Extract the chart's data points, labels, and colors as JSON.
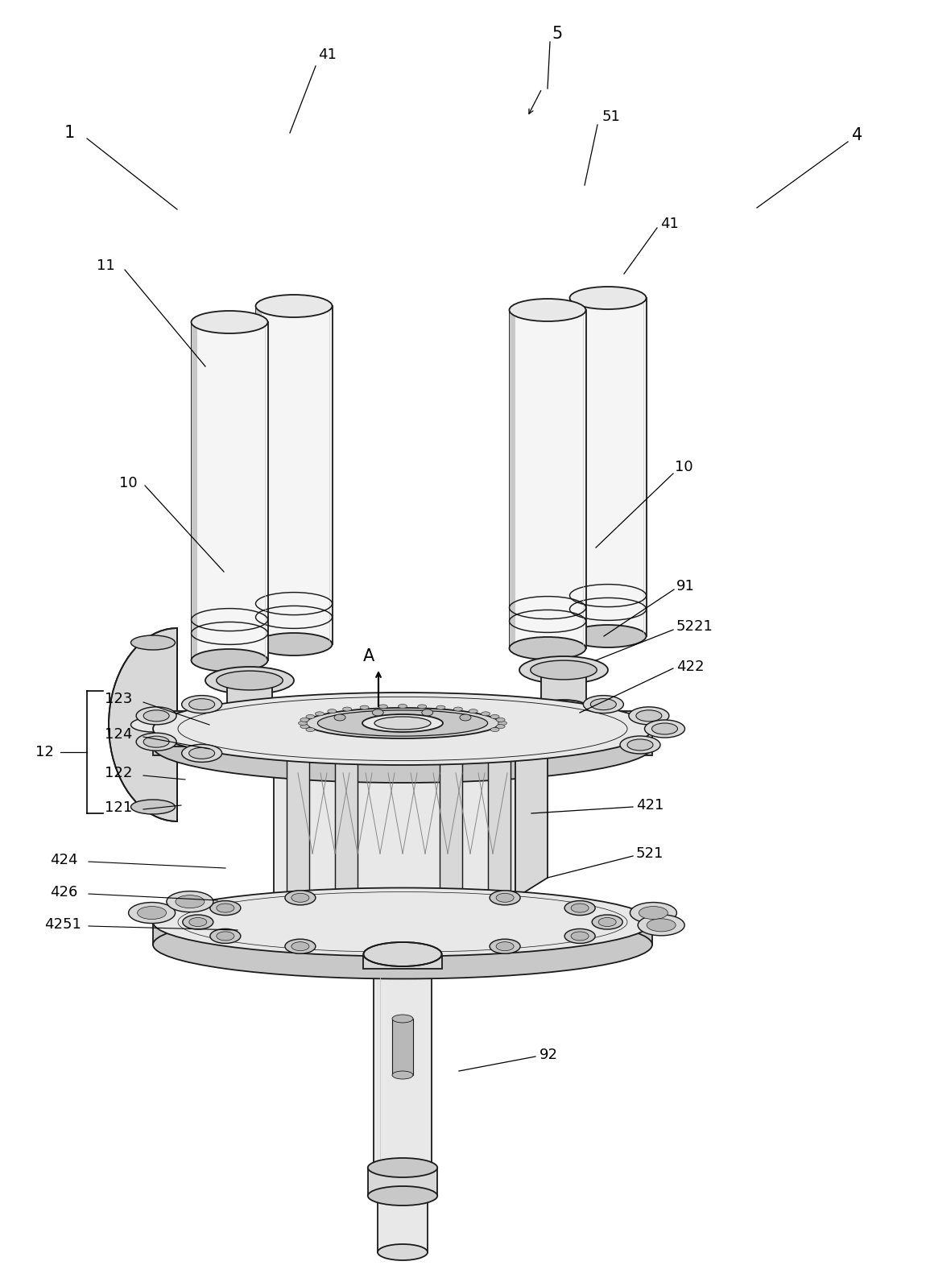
{
  "bg_color": "#ffffff",
  "lc": "#1a1a1a",
  "lw": 1.3,
  "figsize": [
    11.5,
    15.92
  ],
  "dpi": 100,
  "gray1": "#f5f5f5",
  "gray2": "#e8e8e8",
  "gray3": "#d8d8d8",
  "gray4": "#c8c8c8",
  "gray5": "#b8b8b8",
  "gray6": "#a0a0a0",
  "dark1": "#888888",
  "dark2": "#707070"
}
